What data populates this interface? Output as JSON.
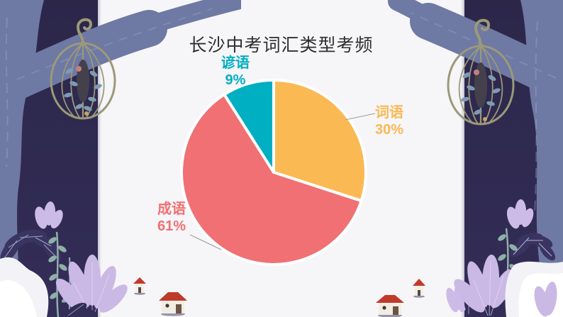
{
  "slide": {
    "canvas_color": "#F6F5F8",
    "panel_color": "#2E2851"
  },
  "chart_data": {
    "type": "pie",
    "title": "长沙中考词汇类型考频",
    "slices": [
      {
        "label": "词语",
        "value": 30,
        "display": "30%",
        "color": "#FBB954"
      },
      {
        "label": "成语",
        "value": 61,
        "display": "61%",
        "color": "#F07073"
      },
      {
        "label": "谚语",
        "value": 9,
        "display": "9%",
        "color": "#00AFC2"
      }
    ],
    "start_angle_deg": 0,
    "direction": "clockwise",
    "slice_border_color": "#FFFFFF",
    "labels_outside": true,
    "legend_position": "none"
  },
  "decor": {
    "icons": [
      "tree-icon",
      "birdcage-icon",
      "plant-icon",
      "snow-mound-icon",
      "house-icon",
      "leaf-icon"
    ],
    "colors": {
      "tree": "#6E79A4",
      "cage": "#9B9979",
      "lavender_plant": "#CDBBE7",
      "dark_leaf": "#393260",
      "teal_sprig": "#8FB0A8",
      "house_roof": "#BF3A2B",
      "house_wall": "#F2EDE2",
      "snow": "#FFFFFF"
    }
  }
}
